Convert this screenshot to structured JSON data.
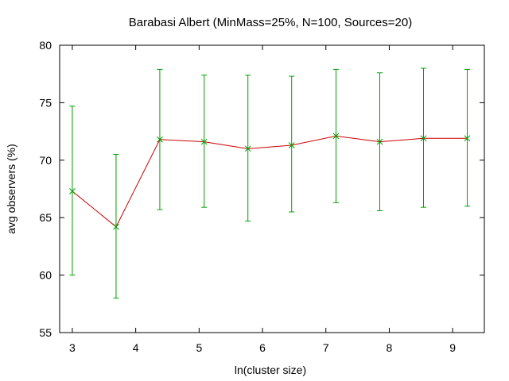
{
  "chart_data": {
    "type": "line",
    "title": "Barabasi Albert (MinMass=25%, N=100, Sources=20)",
    "xlabel": "ln(cluster size)",
    "ylabel": "avg observers (%)",
    "xlim": [
      2.8,
      9.5
    ],
    "ylim": [
      55,
      80
    ],
    "xticks": [
      3,
      4,
      5,
      6,
      7,
      8,
      9
    ],
    "yticks": [
      55,
      60,
      65,
      70,
      75,
      80
    ],
    "grid": false,
    "legend": "none",
    "series": [
      {
        "line_color": "#cc0000",
        "errorbar_color": "#00a000",
        "points": [
          {
            "x": 3.0,
            "y": 67.3,
            "ylow": 60.0,
            "yhigh": 74.7
          },
          {
            "x": 3.69,
            "y": 64.2,
            "ylow": 58.0,
            "yhigh": 70.5
          },
          {
            "x": 4.38,
            "y": 71.8,
            "ylow": 65.7,
            "yhigh": 77.9
          },
          {
            "x": 5.08,
            "y": 71.6,
            "ylow": 65.9,
            "yhigh": 77.4
          },
          {
            "x": 5.77,
            "y": 71.0,
            "ylow": 64.7,
            "yhigh": 77.4
          },
          {
            "x": 6.46,
            "y": 71.3,
            "ylow": 65.5,
            "yhigh": 77.3
          },
          {
            "x": 7.16,
            "y": 72.1,
            "ylow": 66.3,
            "yhigh": 77.9
          },
          {
            "x": 7.85,
            "y": 71.6,
            "ylow": 65.6,
            "yhigh": 77.6
          },
          {
            "x": 8.54,
            "y": 71.9,
            "ylow": 65.9,
            "yhigh": 78.0
          },
          {
            "x": 9.23,
            "y": 71.9,
            "ylow": 66.0,
            "yhigh": 77.9
          }
        ]
      }
    ]
  }
}
